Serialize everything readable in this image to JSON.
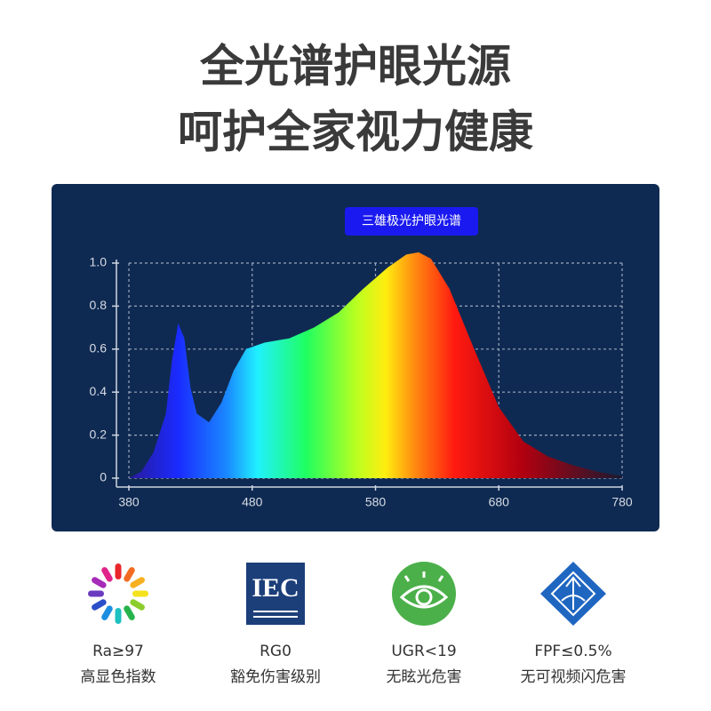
{
  "header": {
    "title_line1": "全光谱护眼光源",
    "title_line2": "呵护全家视力健康"
  },
  "chart_data": {
    "type": "area",
    "x": [
      380,
      390,
      400,
      410,
      415,
      420,
      425,
      430,
      435,
      445,
      455,
      465,
      475,
      490,
      510,
      530,
      550,
      570,
      590,
      605,
      615,
      625,
      640,
      660,
      680,
      700,
      720,
      740,
      760,
      780
    ],
    "series": [
      {
        "name": "三雄极光护眼光谱",
        "values": [
          0,
          0.03,
          0.12,
          0.3,
          0.55,
          0.72,
          0.65,
          0.42,
          0.3,
          0.26,
          0.35,
          0.5,
          0.6,
          0.63,
          0.65,
          0.7,
          0.77,
          0.88,
          0.98,
          1.04,
          1.05,
          1.02,
          0.88,
          0.6,
          0.33,
          0.17,
          0.1,
          0.06,
          0.03,
          0.01
        ]
      }
    ],
    "xlim": [
      380,
      780
    ],
    "xticks": [
      380,
      480,
      580,
      680,
      780
    ],
    "ylim": [
      0,
      1
    ],
    "yticks": [
      0,
      0.2,
      0.4,
      0.6,
      0.8,
      {
        "value": 1,
        "label": "1.0"
      }
    ],
    "grid": true
  },
  "features": [
    {
      "label1": "Ra≥97",
      "label2": "高显色指数"
    },
    {
      "icon_text": "IEC",
      "label1": "RG0",
      "label2": "豁免伤害级别"
    },
    {
      "label1": "UGR<19",
      "label2": "无眩光危害"
    },
    {
      "label1": "FPF≤0.5%",
      "label2": "无可视频闪危害"
    }
  ]
}
